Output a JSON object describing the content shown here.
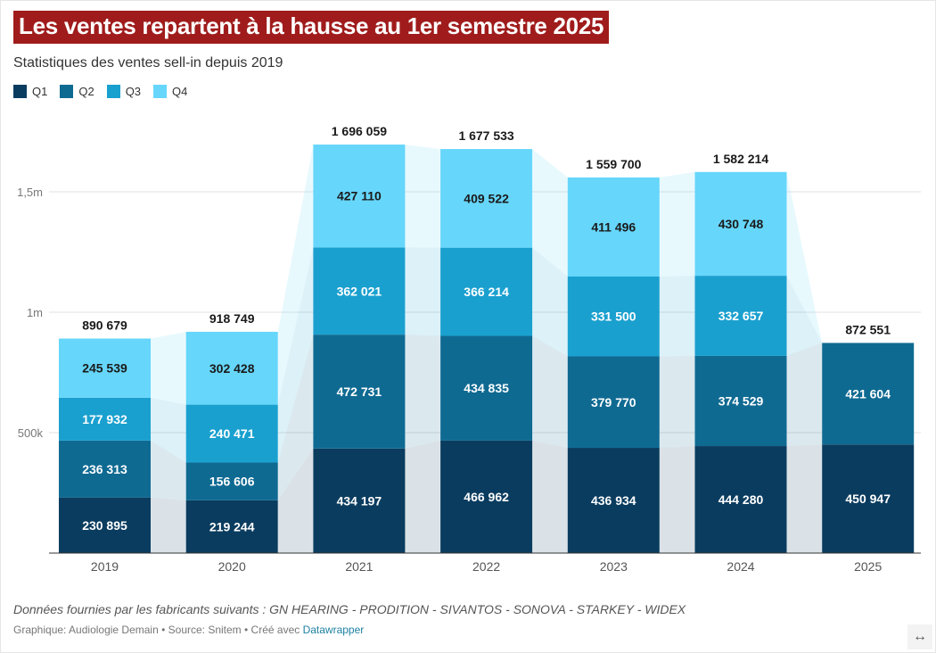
{
  "header": {
    "title": "Les ventes repartent à la hausse au 1er semestre 2025",
    "subtitle": "Statistiques des ventes sell-in depuis 2019",
    "title_bg": "#a01c1c"
  },
  "legend": [
    {
      "label": "Q1",
      "color": "#0a3c5f"
    },
    {
      "label": "Q2",
      "color": "#0f6a92"
    },
    {
      "label": "Q3",
      "color": "#1aa0cf"
    },
    {
      "label": "Q4",
      "color": "#66d6fb"
    }
  ],
  "chart_data": {
    "type": "bar",
    "stacked": true,
    "title": "Les ventes repartent à la hausse au 1er semestre 2025",
    "subtitle": "Statistiques des ventes sell-in depuis 2019",
    "categories": [
      "2019",
      "2020",
      "2021",
      "2022",
      "2023",
      "2024",
      "2025"
    ],
    "series": [
      {
        "name": "Q1",
        "color": "#0a3c5f",
        "values": [
          230895,
          219244,
          434197,
          466962,
          436934,
          444280,
          450947
        ],
        "labels": [
          "230 895",
          "219 244",
          "434 197",
          "466 962",
          "436 934",
          "444 280",
          "450 947"
        ]
      },
      {
        "name": "Q2",
        "color": "#0f6a92",
        "values": [
          236313,
          156606,
          472731,
          434835,
          379770,
          374529,
          421604
        ],
        "labels": [
          "236 313",
          "156 606",
          "472 731",
          "434 835",
          "379 770",
          "374 529",
          "421 604"
        ]
      },
      {
        "name": "Q3",
        "color": "#1aa0cf",
        "values": [
          177932,
          240471,
          362021,
          366214,
          331500,
          332657,
          null
        ],
        "labels": [
          "177 932",
          "240 471",
          "362 021",
          "366 214",
          "331 500",
          "332 657",
          null
        ]
      },
      {
        "name": "Q4",
        "color": "#66d6fb",
        "values": [
          245539,
          302428,
          427110,
          409522,
          411496,
          430748,
          null
        ],
        "labels": [
          "245 539",
          "302 428",
          "427 110",
          "409 522",
          "411 496",
          "430 748",
          null
        ]
      }
    ],
    "totals": [
      890679,
      918749,
      1696059,
      1677533,
      1559700,
      1582214,
      872551
    ],
    "total_labels": [
      "890 679",
      "918 749",
      "1 696 059",
      "1 677 533",
      "1 559 700",
      "1 582 214",
      "872 551"
    ],
    "ylim": [
      0,
      1750000
    ],
    "yticks": [
      500000,
      1000000,
      1500000
    ],
    "ytick_labels": [
      "500k",
      "1m",
      "1,5m"
    ],
    "xlabel": "",
    "ylabel": "",
    "legend_position": "top-left",
    "grid": true
  },
  "footer": {
    "note": "Données fournies par les fabricants suivants : GN HEARING - PRODITION - SIVANTOS - SONOVA - STARKEY - WIDEX",
    "credit_prefix": "Graphique: Audiologie Demain • Source: Snitem • Créé avec ",
    "credit_link": "Datawrapper",
    "expand_icon": "↔"
  }
}
